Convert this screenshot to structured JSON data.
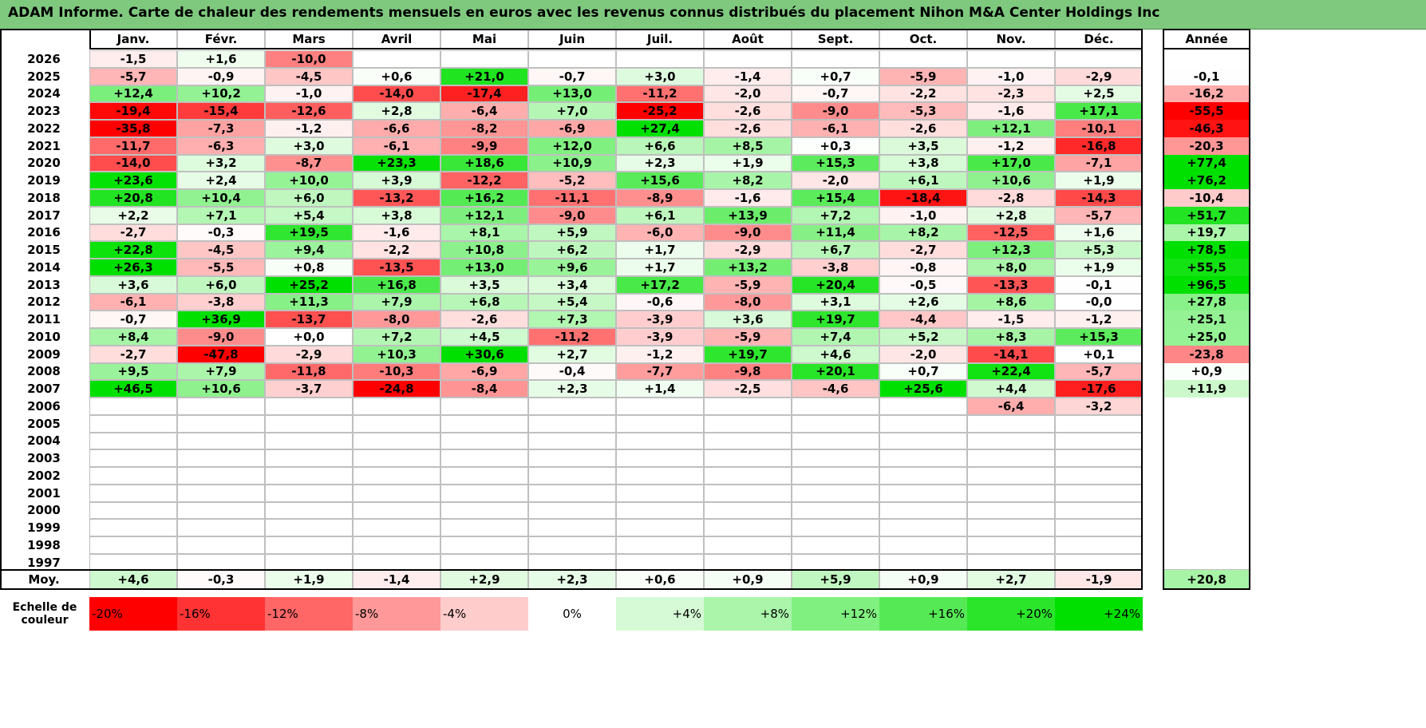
{
  "title": "ADAM Informe. Carte de chaleur des rendements mensuels en euros avec les revenus connus distribués du placement Nihon M&A Center Holdings Inc",
  "colors": {
    "title_bar": "#7fc97f",
    "negative_max": "#ff0000",
    "positive_max": "#00e000",
    "neutral": "#ffffff"
  },
  "chart_data": {
    "type": "heatmap",
    "title": "ADAM Informe. Carte de chaleur des rendements mensuels en euros avec les revenus connus distribués du placement Nihon M&A Center Holdings Inc",
    "months": [
      "Janv.",
      "Févr.",
      "Mars",
      "Avril",
      "Mai",
      "Juin",
      "Juil.",
      "Août",
      "Sept.",
      "Oct.",
      "Nov.",
      "Déc."
    ],
    "year_label": "Année",
    "rows": [
      {
        "year": "2026",
        "values": [
          "-1,5",
          "+1,6",
          "-10,0",
          "",
          "",
          "",
          "",
          "",
          "",
          "",
          "",
          ""
        ],
        "annual": ""
      },
      {
        "year": "2025",
        "values": [
          "-5,7",
          "-0,9",
          "-4,5",
          "+0,6",
          "+21,0",
          "-0,7",
          "+3,0",
          "-1,4",
          "+0,7",
          "-5,9",
          "-1,0",
          "-2,9"
        ],
        "annual": "-0,1"
      },
      {
        "year": "2024",
        "values": [
          "+12,4",
          "+10,2",
          "-1,0",
          "-14,0",
          "-17,4",
          "+13,0",
          "-11,2",
          "-2,0",
          "-0,7",
          "-2,2",
          "-2,3",
          "+2,5"
        ],
        "annual": "-16,2"
      },
      {
        "year": "2023",
        "values": [
          "-19,4",
          "-15,4",
          "-12,6",
          "+2,8",
          "-6,4",
          "+7,0",
          "-25,2",
          "-2,6",
          "-9,0",
          "-5,3",
          "-1,6",
          "+17,1"
        ],
        "annual": "-55,5"
      },
      {
        "year": "2022",
        "values": [
          "-35,8",
          "-7,3",
          "-1,2",
          "-6,6",
          "-8,2",
          "-6,9",
          "+27,4",
          "-2,6",
          "-6,1",
          "-2,6",
          "+12,1",
          "-10,1"
        ],
        "annual": "-46,3"
      },
      {
        "year": "2021",
        "values": [
          "-11,7",
          "-6,3",
          "+3,0",
          "-6,1",
          "-9,9",
          "+12,0",
          "+6,6",
          "+8,5",
          "+0,3",
          "+3,5",
          "-1,2",
          "-16,8"
        ],
        "annual": "-20,3"
      },
      {
        "year": "2020",
        "values": [
          "-14,0",
          "+3,2",
          "-8,7",
          "+23,3",
          "+18,6",
          "+10,9",
          "+2,3",
          "+1,9",
          "+15,3",
          "+3,8",
          "+17,0",
          "-7,1"
        ],
        "annual": "+77,4"
      },
      {
        "year": "2019",
        "values": [
          "+23,6",
          "+2,4",
          "+10,0",
          "+3,9",
          "-12,2",
          "-5,2",
          "+15,6",
          "+8,2",
          "-2,0",
          "+6,1",
          "+10,6",
          "+1,9"
        ],
        "annual": "+76,2"
      },
      {
        "year": "2018",
        "values": [
          "+20,8",
          "+10,4",
          "+6,0",
          "-13,2",
          "+16,2",
          "-11,1",
          "-8,9",
          "-1,6",
          "+15,4",
          "-18,4",
          "-2,8",
          "-14,3"
        ],
        "annual": "-10,4"
      },
      {
        "year": "2017",
        "values": [
          "+2,2",
          "+7,1",
          "+5,4",
          "+3,8",
          "+12,1",
          "-9,0",
          "+6,1",
          "+13,9",
          "+7,2",
          "-1,0",
          "+2,8",
          "-5,7"
        ],
        "annual": "+51,7"
      },
      {
        "year": "2016",
        "values": [
          "-2,7",
          "-0,3",
          "+19,5",
          "-1,6",
          "+8,1",
          "+5,9",
          "-6,0",
          "-9,0",
          "+11,4",
          "+8,2",
          "-12,5",
          "+1,6"
        ],
        "annual": "+19,7"
      },
      {
        "year": "2015",
        "values": [
          "+22,8",
          "-4,5",
          "+9,4",
          "-2,2",
          "+10,8",
          "+6,2",
          "+1,7",
          "-2,9",
          "+6,7",
          "-2,7",
          "+12,3",
          "+5,3"
        ],
        "annual": "+78,5"
      },
      {
        "year": "2014",
        "values": [
          "+26,3",
          "-5,5",
          "+0,8",
          "-13,5",
          "+13,0",
          "+9,6",
          "+1,7",
          "+13,2",
          "-3,8",
          "-0,8",
          "+8,0",
          "+1,9"
        ],
        "annual": "+55,5"
      },
      {
        "year": "2013",
        "values": [
          "+3,6",
          "+6,0",
          "+25,2",
          "+16,8",
          "+3,5",
          "+3,4",
          "+17,2",
          "-5,9",
          "+20,4",
          "-0,5",
          "-13,3",
          "-0,1"
        ],
        "annual": "+96,5"
      },
      {
        "year": "2012",
        "values": [
          "-6,1",
          "-3,8",
          "+11,3",
          "+7,9",
          "+6,8",
          "+5,4",
          "-0,6",
          "-8,0",
          "+3,1",
          "+2,6",
          "+8,6",
          "-0,0"
        ],
        "annual": "+27,8"
      },
      {
        "year": "2011",
        "values": [
          "-0,7",
          "+36,9",
          "-13,7",
          "-8,0",
          "-2,6",
          "+7,3",
          "-3,9",
          "+3,6",
          "+19,7",
          "-4,4",
          "-1,5",
          "-1,2"
        ],
        "annual": "+25,1"
      },
      {
        "year": "2010",
        "values": [
          "+8,4",
          "-9,0",
          "+0,0",
          "+7,2",
          "+4,5",
          "-11,2",
          "-3,9",
          "-5,9",
          "+7,4",
          "+5,2",
          "+8,3",
          "+15,3"
        ],
        "annual": "+25,0"
      },
      {
        "year": "2009",
        "values": [
          "-2,7",
          "-47,8",
          "-2,9",
          "+10,3",
          "+30,6",
          "+2,7",
          "-1,2",
          "+19,7",
          "+4,6",
          "-2,0",
          "-14,1",
          "+0,1"
        ],
        "annual": "-23,8"
      },
      {
        "year": "2008",
        "values": [
          "+9,5",
          "+7,9",
          "-11,8",
          "-10,3",
          "-6,9",
          "-0,4",
          "-7,7",
          "-9,8",
          "+20,1",
          "+0,7",
          "+22,4",
          "-5,7"
        ],
        "annual": "+0,9"
      },
      {
        "year": "2007",
        "values": [
          "+46,5",
          "+10,6",
          "-3,7",
          "-24,8",
          "-8,4",
          "+2,3",
          "+1,4",
          "-2,5",
          "-4,6",
          "+25,6",
          "+4,4",
          "-17,6"
        ],
        "annual": "+11,9"
      },
      {
        "year": "2006",
        "values": [
          "",
          "",
          "",
          "",
          "",
          "",
          "",
          "",
          "",
          "",
          "-6,4",
          "-3,2"
        ],
        "annual": ""
      },
      {
        "year": "2005",
        "values": [
          "",
          "",
          "",
          "",
          "",
          "",
          "",
          "",
          "",
          "",
          "",
          ""
        ],
        "annual": ""
      },
      {
        "year": "2004",
        "values": [
          "",
          "",
          "",
          "",
          "",
          "",
          "",
          "",
          "",
          "",
          "",
          ""
        ],
        "annual": ""
      },
      {
        "year": "2003",
        "values": [
          "",
          "",
          "",
          "",
          "",
          "",
          "",
          "",
          "",
          "",
          "",
          ""
        ],
        "annual": ""
      },
      {
        "year": "2002",
        "values": [
          "",
          "",
          "",
          "",
          "",
          "",
          "",
          "",
          "",
          "",
          "",
          ""
        ],
        "annual": ""
      },
      {
        "year": "2001",
        "values": [
          "",
          "",
          "",
          "",
          "",
          "",
          "",
          "",
          "",
          "",
          "",
          ""
        ],
        "annual": ""
      },
      {
        "year": "2000",
        "values": [
          "",
          "",
          "",
          "",
          "",
          "",
          "",
          "",
          "",
          "",
          "",
          ""
        ],
        "annual": ""
      },
      {
        "year": "1999",
        "values": [
          "",
          "",
          "",
          "",
          "",
          "",
          "",
          "",
          "",
          "",
          "",
          ""
        ],
        "annual": ""
      },
      {
        "year": "1998",
        "values": [
          "",
          "",
          "",
          "",
          "",
          "",
          "",
          "",
          "",
          "",
          "",
          ""
        ],
        "annual": ""
      },
      {
        "year": "1997",
        "values": [
          "",
          "",
          "",
          "",
          "",
          "",
          "",
          "",
          "",
          "",
          "",
          ""
        ],
        "annual": ""
      }
    ],
    "average_label": "Moy.",
    "averages": [
      "+4,6",
      "-0,3",
      "+1,9",
      "-1,4",
      "+2,9",
      "+2,3",
      "+0,6",
      "+0,9",
      "+5,9",
      "+0,9",
      "+2,7",
      "-1,9"
    ],
    "average_annual": "+20,8",
    "color_scale": {
      "label_line1": "Echelle de",
      "label_line2": "couleur",
      "steps": [
        {
          "label": "-20%",
          "value": -20,
          "align": "left"
        },
        {
          "label": "-16%",
          "value": -16,
          "align": "left"
        },
        {
          "label": "-12%",
          "value": -12,
          "align": "left"
        },
        {
          "label": "-8%",
          "value": -8,
          "align": "left"
        },
        {
          "label": "-4%",
          "value": -4,
          "align": "left"
        },
        {
          "label": "0%",
          "value": 0,
          "align": "center"
        },
        {
          "label": "+4%",
          "value": 4,
          "align": "right"
        },
        {
          "label": "+8%",
          "value": 8,
          "align": "right"
        },
        {
          "label": "+12%",
          "value": 12,
          "align": "right"
        },
        {
          "label": "+16%",
          "value": 16,
          "align": "right"
        },
        {
          "label": "+20%",
          "value": 20,
          "align": "right"
        },
        {
          "label": "+24%",
          "value": 24,
          "align": "right"
        }
      ]
    }
  }
}
